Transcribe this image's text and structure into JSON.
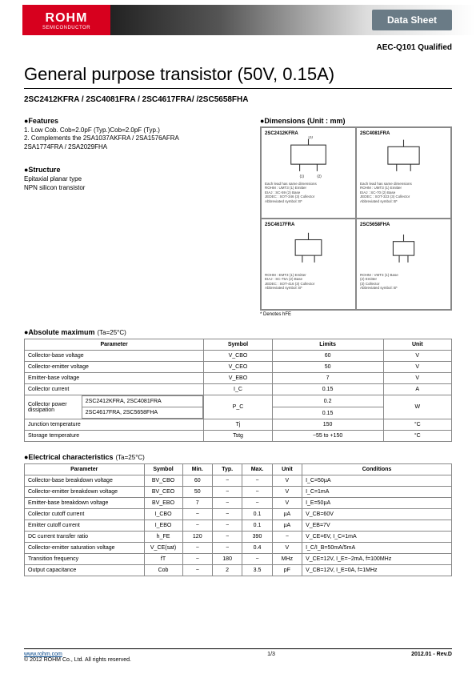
{
  "logo": {
    "main": "ROHM",
    "sub": "SEMICONDUCTOR"
  },
  "datasheet_label": "Data Sheet",
  "qualifier": "AEC-Q101 Qualified",
  "title": "General purpose transistor (50V, 0.15A)",
  "subtitle": "2SC2412KFRA / 2SC4081FRA / 2SC4617FRA/ /2SC5658FHA",
  "features": {
    "head": "●Features",
    "lines": [
      "1. Low Cob. Cob=2.0pF (Typ.)Cob=2.0pF (Typ.)",
      "2. Complements the 2SA1037AKFRA / 2SA1576AFRA",
      "    2SA1774FRA / 2SA2029FHA"
    ]
  },
  "structure": {
    "head": "●Structure",
    "lines": [
      "Epitaxial planar type",
      "NPN silicon transistor"
    ]
  },
  "dimensions": {
    "head": "●Dimensions (Unit : mm)",
    "note": "* Denotes hFE",
    "cells": [
      {
        "part": "2SC2412KFRA",
        "lines": [
          "Each lead has same dimensions",
          "ROHM : UMT3   (1) Emitter",
          "EIAJ : SC-59    (2) Base",
          "JEDEC : SOT-346  (3) Collector",
          "Abbreviated symbol: B*"
        ]
      },
      {
        "part": "2SC4081FRA",
        "lines": [
          "Each lead has same dimensions",
          "ROHM : UMT3   (1) Emitter",
          "EIAJ : SC-70    (2) Base",
          "JEDEC : SOT-323  (3) Collector",
          "Abbreviated symbol: B*"
        ]
      },
      {
        "part": "2SC4617FRA",
        "lines": [
          "ROHM : EMT3   (1) Emitter",
          "EIAJ : SC-75A   (2) Base",
          "JEDEC : SOT-416  (3) Collector",
          "Abbreviated symbol: B*"
        ]
      },
      {
        "part": "2SC5658FHA",
        "lines": [
          "ROHM : VMT3   (1) Base",
          "                (2) Emitter",
          "                (3) Collector",
          "Abbreviated symbol: B*"
        ]
      }
    ]
  },
  "abs_max": {
    "title": "●Absolute maximum",
    "cond": "(Ta=25°C)",
    "headers": [
      "Parameter",
      "Symbol",
      "Limits",
      "Unit"
    ],
    "rows": [
      [
        "Collector-base voltage",
        "V_CBO",
        "60",
        "V"
      ],
      [
        "Collector-emitter voltage",
        "V_CEO",
        "50",
        "V"
      ],
      [
        "Emitter-base voltage",
        "V_EBO",
        "7",
        "V"
      ],
      [
        "Collector current",
        "I_C",
        "0.15",
        "A"
      ]
    ],
    "pc": {
      "label": "Collector power dissipation",
      "sub1": "2SC2412KFRA, 2SC4081FRA",
      "sub2": "2SC4617FRA, 2SC5658FHA",
      "symbol": "P_C",
      "v1": "0.2",
      "v2": "0.15",
      "unit": "W"
    },
    "rows2": [
      [
        "Junction temperature",
        "Tj",
        "150",
        "°C"
      ],
      [
        "Storage temperature",
        "Tstg",
        "−55 to +150",
        "°C"
      ]
    ]
  },
  "elec": {
    "title": "●Electrical characteristics",
    "cond": "(Ta=25°C)",
    "headers": [
      "Parameter",
      "Symbol",
      "Min.",
      "Typ.",
      "Max.",
      "Unit",
      "Conditions"
    ],
    "rows": [
      [
        "Collector-base breakdown voltage",
        "BV_CBO",
        "60",
        "−",
        "−",
        "V",
        "I_C=50µA"
      ],
      [
        "Collector-emitter breakdown voltage",
        "BV_CEO",
        "50",
        "−",
        "−",
        "V",
        "I_C=1mA"
      ],
      [
        "Emitter-base breakdown voltage",
        "BV_EBO",
        "7",
        "−",
        "−",
        "V",
        "I_E=50µA"
      ],
      [
        "Collector cutoff current",
        "I_CBO",
        "−",
        "−",
        "0.1",
        "µA",
        "V_CB=60V"
      ],
      [
        "Emitter cutoff current",
        "I_EBO",
        "−",
        "−",
        "0.1",
        "µA",
        "V_EB=7V"
      ],
      [
        "DC current transfer ratio",
        "h_FE",
        "120",
        "−",
        "390",
        "−",
        "V_CE=6V, I_C=1mA"
      ],
      [
        "Collector-emitter saturation voltage",
        "V_CE(sat)",
        "−",
        "−",
        "0.4",
        "V",
        "I_C/I_B=50mA/5mA"
      ],
      [
        "Transition frequency",
        "fT",
        "−",
        "180",
        "−",
        "MHz",
        "V_CE=12V, I_E=−2mA, f=100MHz"
      ],
      [
        "Output capacitance",
        "Cob",
        "−",
        "2",
        "3.5",
        "pF",
        "V_CB=12V, I_E=0A, f=1MHz"
      ]
    ]
  },
  "footer": {
    "url": "www.rohm.com",
    "copyright": "© 2012 ROHM Co., Ltd. All rights reserved.",
    "page": "1/3",
    "rev": "2012.01 - Rev.D"
  },
  "colors": {
    "rohm_red": "#d7001e",
    "badge": "#6a7b86",
    "border": "#888888"
  }
}
